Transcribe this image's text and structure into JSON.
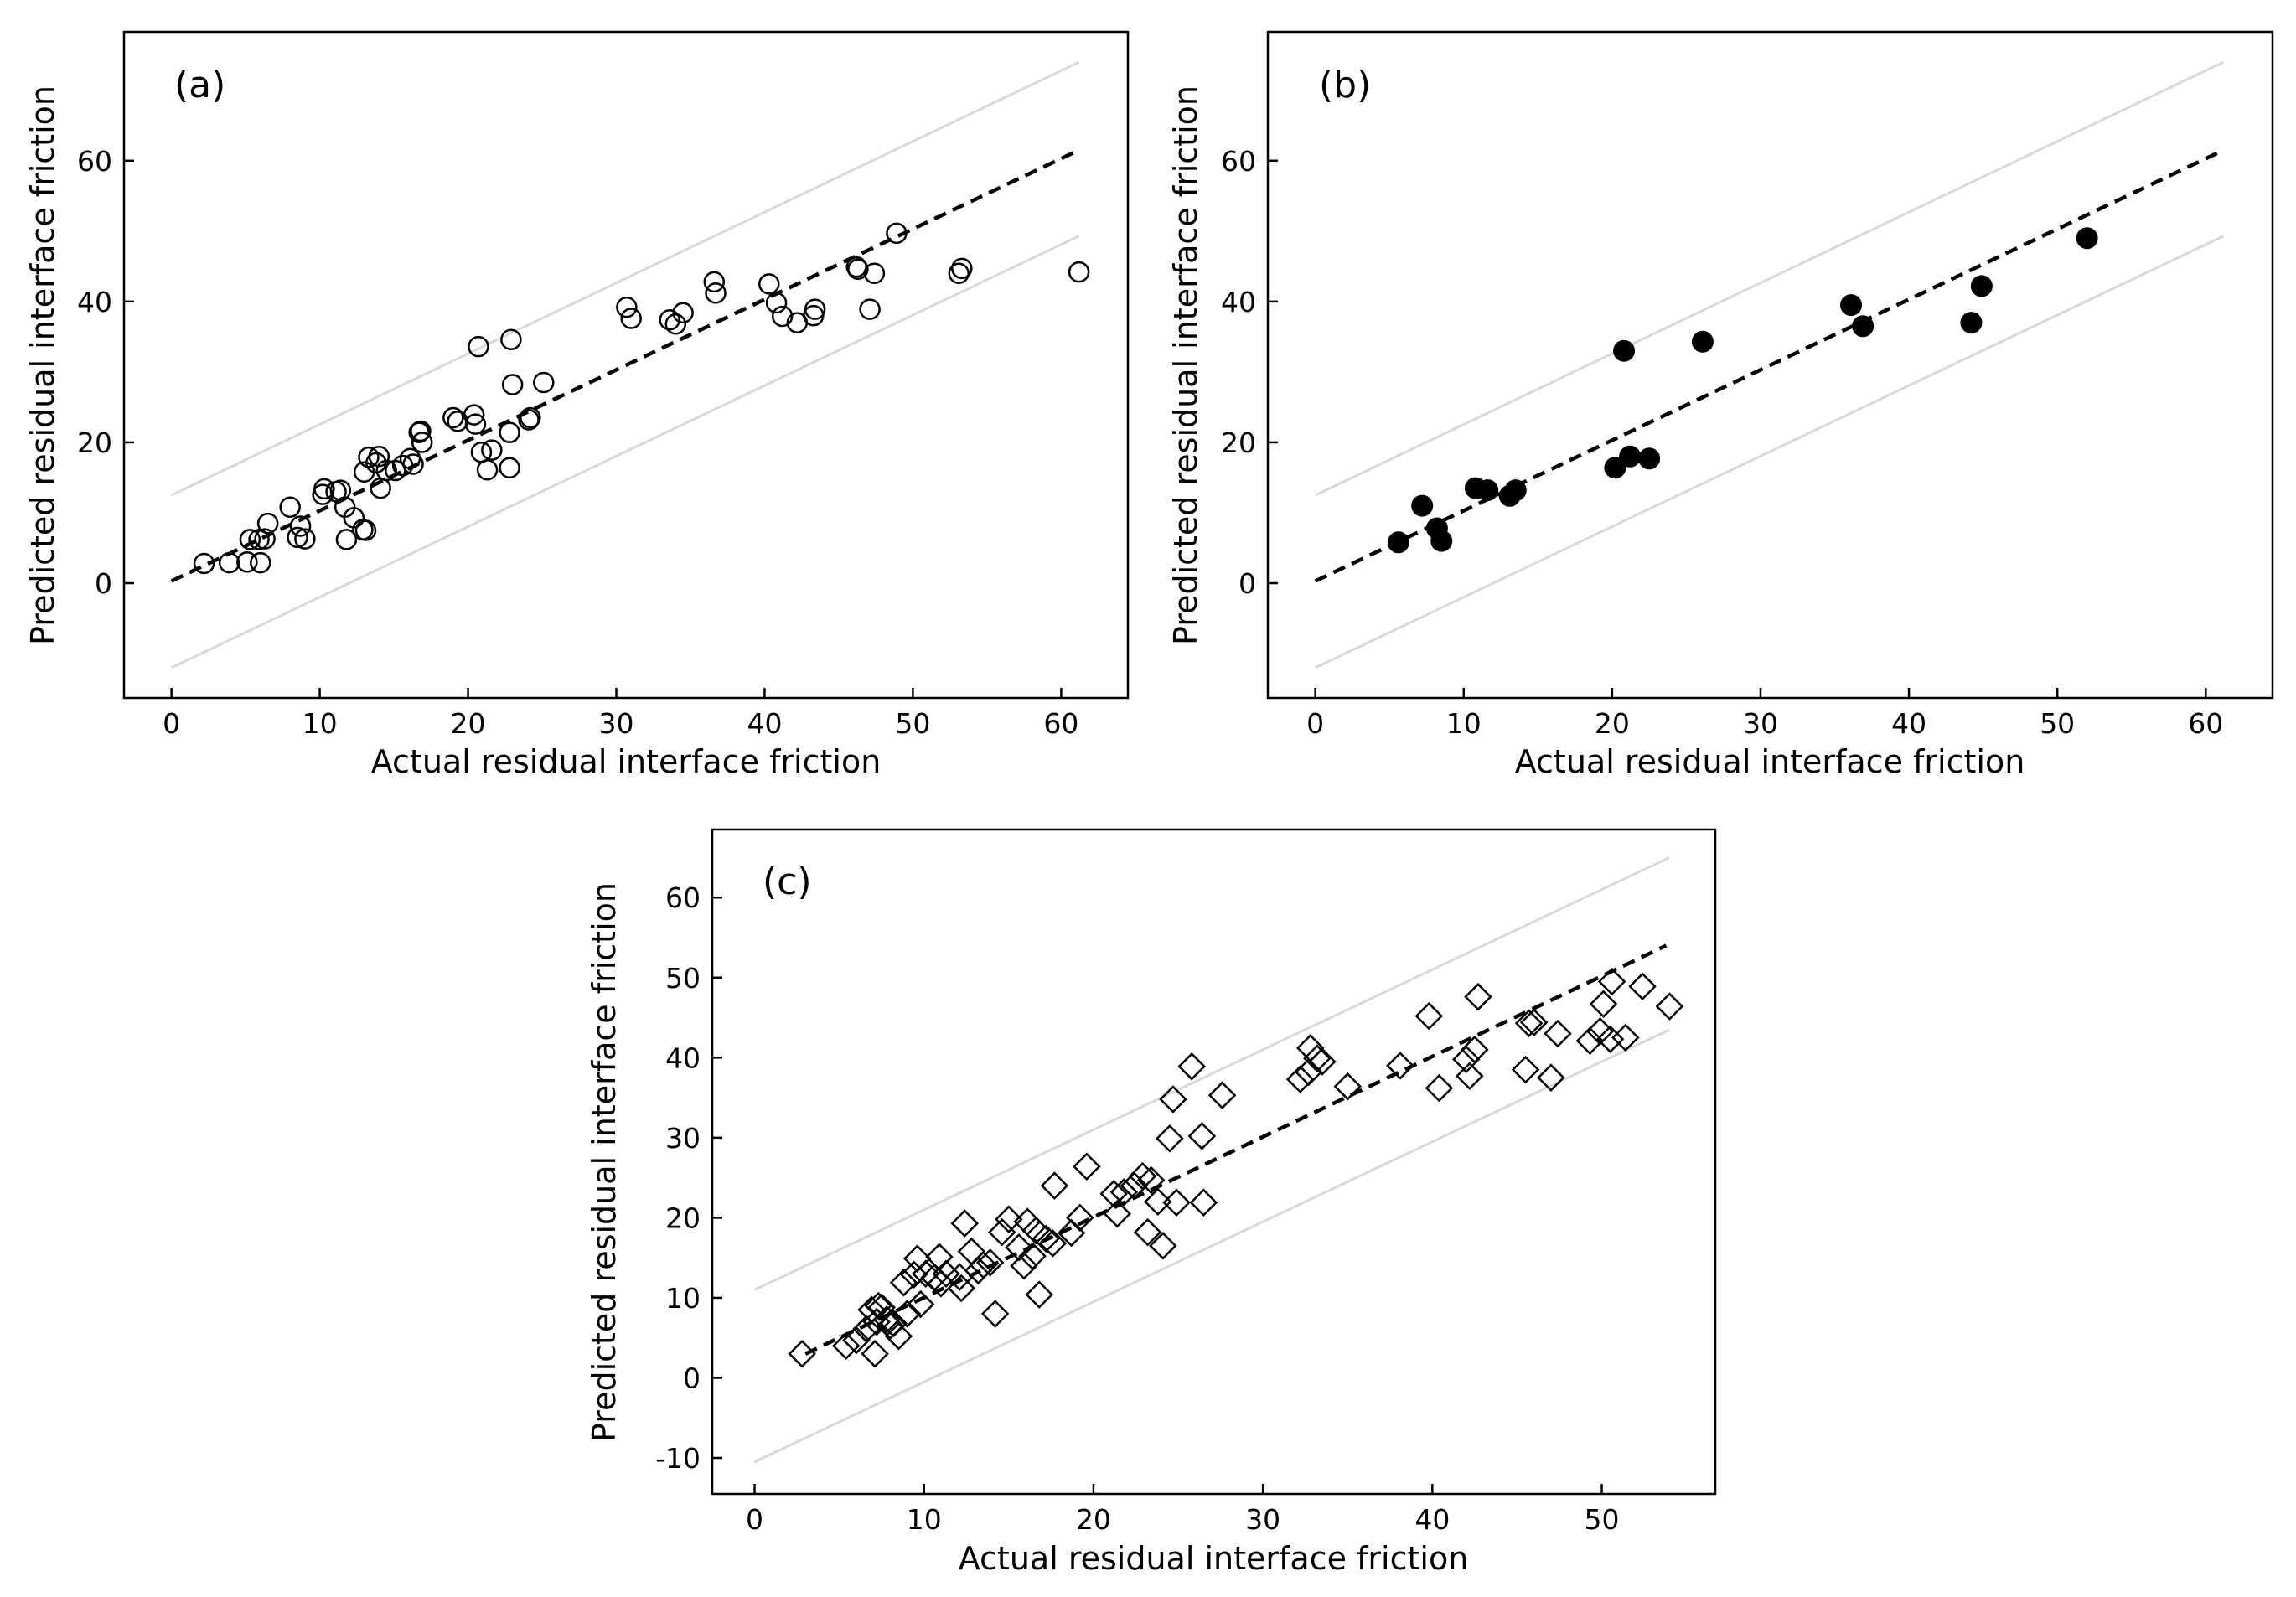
{
  "chart_data": [
    {
      "type": "scatter",
      "panel_label": "(a)",
      "xlabel": "Actual residual interface friction",
      "ylabel": "Predicted residual interface friction",
      "xlim": [
        -3.2,
        64.5
      ],
      "ylim": [
        -16.3,
        78.3
      ],
      "xticks": [
        0,
        10,
        20,
        30,
        40,
        50,
        60
      ],
      "yticks": [
        0,
        20,
        40,
        60
      ],
      "grid": false,
      "marker": "circle-open",
      "fit_line": {
        "x": [
          0,
          61.2
        ],
        "y": [
          0.3,
          61.5
        ]
      },
      "band_upper": {
        "x": [
          0,
          61.2
        ],
        "y": [
          12.5,
          74.0
        ]
      },
      "band_lower": {
        "x": [
          0,
          61.2
        ],
        "y": [
          -12.0,
          49.3
        ]
      },
      "points": [
        [
          2.2,
          2.8
        ],
        [
          3.9,
          2.9
        ],
        [
          5.1,
          3.0
        ],
        [
          6.0,
          2.9
        ],
        [
          5.3,
          6.2
        ],
        [
          5.9,
          6.2
        ],
        [
          6.3,
          6.3
        ],
        [
          6.5,
          8.5
        ],
        [
          8.0,
          10.8
        ],
        [
          8.5,
          6.5
        ],
        [
          8.7,
          8.1
        ],
        [
          9.0,
          6.3
        ],
        [
          10.2,
          12.6
        ],
        [
          10.3,
          13.4
        ],
        [
          11.1,
          13.0
        ],
        [
          11.4,
          13.2
        ],
        [
          11.7,
          10.8
        ],
        [
          11.8,
          6.2
        ],
        [
          12.3,
          9.3
        ],
        [
          12.9,
          7.6
        ],
        [
          13.1,
          7.5
        ],
        [
          13.0,
          15.8
        ],
        [
          13.3,
          17.9
        ],
        [
          13.8,
          17.1
        ],
        [
          14.0,
          18.0
        ],
        [
          14.1,
          13.5
        ],
        [
          14.5,
          16.0
        ],
        [
          15.1,
          16.0
        ],
        [
          15.6,
          16.7
        ],
        [
          16.1,
          17.7
        ],
        [
          16.3,
          16.9
        ],
        [
          16.7,
          21.4
        ],
        [
          16.8,
          21.6
        ],
        [
          16.9,
          20.0
        ],
        [
          19.0,
          23.5
        ],
        [
          19.3,
          23.0
        ],
        [
          20.4,
          23.9
        ],
        [
          20.5,
          22.6
        ],
        [
          20.7,
          33.6
        ],
        [
          20.9,
          18.6
        ],
        [
          21.3,
          16.1
        ],
        [
          21.6,
          18.9
        ],
        [
          22.8,
          16.4
        ],
        [
          22.8,
          21.4
        ],
        [
          22.9,
          34.6
        ],
        [
          23.0,
          28.2
        ],
        [
          24.1,
          23.2
        ],
        [
          24.2,
          23.5
        ],
        [
          25.1,
          28.5
        ],
        [
          30.7,
          39.2
        ],
        [
          31.0,
          37.6
        ],
        [
          33.6,
          37.4
        ],
        [
          34.0,
          36.8
        ],
        [
          34.5,
          38.4
        ],
        [
          36.6,
          42.8
        ],
        [
          36.7,
          41.2
        ],
        [
          40.3,
          42.5
        ],
        [
          40.8,
          39.8
        ],
        [
          41.2,
          37.9
        ],
        [
          42.2,
          37.0
        ],
        [
          43.3,
          38.0
        ],
        [
          43.4,
          38.9
        ],
        [
          46.2,
          44.9
        ],
        [
          46.3,
          44.6
        ],
        [
          47.1,
          38.9
        ],
        [
          47.4,
          44.0
        ],
        [
          48.9,
          49.7
        ],
        [
          53.1,
          44.0
        ],
        [
          53.3,
          44.7
        ],
        [
          61.2,
          44.2
        ]
      ]
    },
    {
      "type": "scatter",
      "panel_label": "(b)",
      "xlabel": "Actual residual interface friction",
      "ylabel": "Predicted residual interface friction",
      "xlim": [
        -3.2,
        64.5
      ],
      "ylim": [
        -16.3,
        78.3
      ],
      "xticks": [
        0,
        10,
        20,
        30,
        40,
        50,
        60
      ],
      "yticks": [
        0,
        20,
        40,
        60
      ],
      "grid": false,
      "marker": "circle-filled",
      "fit_line": {
        "x": [
          0,
          61.2
        ],
        "y": [
          0.3,
          61.5
        ]
      },
      "band_upper": {
        "x": [
          0,
          61.2
        ],
        "y": [
          12.5,
          74.0
        ]
      },
      "band_lower": {
        "x": [
          0,
          61.2
        ],
        "y": [
          -12.0,
          49.3
        ]
      },
      "points": [
        [
          5.6,
          5.8
        ],
        [
          7.2,
          11.0
        ],
        [
          8.2,
          7.8
        ],
        [
          8.5,
          6.0
        ],
        [
          10.8,
          13.5
        ],
        [
          11.6,
          13.2
        ],
        [
          13.1,
          12.4
        ],
        [
          13.5,
          13.2
        ],
        [
          20.2,
          16.4
        ],
        [
          20.8,
          33.0
        ],
        [
          21.2,
          18.0
        ],
        [
          22.5,
          17.7
        ],
        [
          26.1,
          34.3
        ],
        [
          36.1,
          39.5
        ],
        [
          36.9,
          36.5
        ],
        [
          44.2,
          37.0
        ],
        [
          44.9,
          42.2
        ],
        [
          52.0,
          49.0
        ]
      ]
    },
    {
      "type": "scatter",
      "panel_label": "(c)",
      "xlabel": "Actual residual interface friction",
      "ylabel": "Predicted residual interface friction",
      "xlim": [
        -2.5,
        56.7
      ],
      "ylim": [
        -14.5,
        68.5
      ],
      "xticks": [
        0,
        10,
        20,
        30,
        40,
        50
      ],
      "yticks": [
        -10,
        0,
        10,
        20,
        30,
        40,
        50,
        60
      ],
      "grid": false,
      "marker": "diamond-open",
      "fit_line": {
        "x": [
          3.0,
          53.8
        ],
        "y": [
          3.0,
          54.0
        ]
      },
      "band_upper": {
        "x": [
          0,
          54
        ],
        "y": [
          11.0,
          65.0
        ]
      },
      "band_lower": {
        "x": [
          0,
          54
        ],
        "y": [
          -10.5,
          43.5
        ]
      },
      "points": [
        [
          2.8,
          3.0
        ],
        [
          5.4,
          4.0
        ],
        [
          6.0,
          4.7
        ],
        [
          6.6,
          6.1
        ],
        [
          6.9,
          8.5
        ],
        [
          7.1,
          3.0
        ],
        [
          7.2,
          7.0
        ],
        [
          7.3,
          9.0
        ],
        [
          7.5,
          8.8
        ],
        [
          7.8,
          7.3
        ],
        [
          8.0,
          6.5
        ],
        [
          8.2,
          6.8
        ],
        [
          8.5,
          5.2
        ],
        [
          8.8,
          11.9
        ],
        [
          9.0,
          8.0
        ],
        [
          9.4,
          12.9
        ],
        [
          9.6,
          14.9
        ],
        [
          9.8,
          9.2
        ],
        [
          10.1,
          13.0
        ],
        [
          10.6,
          12.5
        ],
        [
          10.9,
          15.1
        ],
        [
          11.0,
          11.8
        ],
        [
          11.3,
          13.0
        ],
        [
          12.1,
          12.6
        ],
        [
          12.2,
          11.2
        ],
        [
          12.4,
          19.3
        ],
        [
          12.8,
          15.8
        ],
        [
          13.2,
          13.4
        ],
        [
          13.5,
          14.1
        ],
        [
          13.9,
          14.4
        ],
        [
          14.2,
          8.0
        ],
        [
          14.6,
          18.2
        ],
        [
          15.0,
          19.8
        ],
        [
          15.6,
          16.3
        ],
        [
          15.9,
          14.0
        ],
        [
          16.1,
          19.5
        ],
        [
          16.4,
          15.2
        ],
        [
          16.6,
          18.4
        ],
        [
          16.8,
          10.4
        ],
        [
          17.2,
          17.4
        ],
        [
          17.6,
          16.8
        ],
        [
          17.7,
          24.0
        ],
        [
          18.7,
          18.1
        ],
        [
          19.2,
          20.0
        ],
        [
          19.6,
          26.4
        ],
        [
          21.2,
          23.0
        ],
        [
          21.4,
          20.5
        ],
        [
          21.8,
          23.2
        ],
        [
          22.4,
          24.0
        ],
        [
          22.9,
          25.2
        ],
        [
          23.2,
          18.2
        ],
        [
          23.4,
          24.7
        ],
        [
          23.8,
          22.0
        ],
        [
          24.1,
          16.5
        ],
        [
          24.5,
          29.9
        ],
        [
          24.7,
          34.8
        ],
        [
          24.9,
          21.9
        ],
        [
          25.8,
          38.9
        ],
        [
          26.4,
          30.2
        ],
        [
          26.5,
          21.9
        ],
        [
          27.6,
          35.3
        ],
        [
          32.2,
          37.3
        ],
        [
          32.7,
          38.2
        ],
        [
          32.8,
          41.2
        ],
        [
          33.2,
          39.9
        ],
        [
          33.5,
          39.5
        ],
        [
          35.0,
          36.4
        ],
        [
          38.1,
          39.0
        ],
        [
          39.8,
          45.2
        ],
        [
          40.4,
          36.2
        ],
        [
          42.0,
          39.8
        ],
        [
          42.2,
          37.7
        ],
        [
          42.5,
          41.0
        ],
        [
          42.7,
          47.6
        ],
        [
          45.5,
          38.5
        ],
        [
          45.7,
          44.3
        ],
        [
          46.0,
          44.4
        ],
        [
          47.0,
          37.5
        ],
        [
          47.4,
          43.0
        ],
        [
          49.3,
          42.1
        ],
        [
          49.9,
          43.3
        ],
        [
          50.1,
          46.7
        ],
        [
          50.5,
          42.3
        ],
        [
          50.6,
          49.5
        ],
        [
          51.4,
          42.5
        ],
        [
          52.4,
          48.9
        ],
        [
          54.0,
          46.4
        ]
      ]
    }
  ]
}
